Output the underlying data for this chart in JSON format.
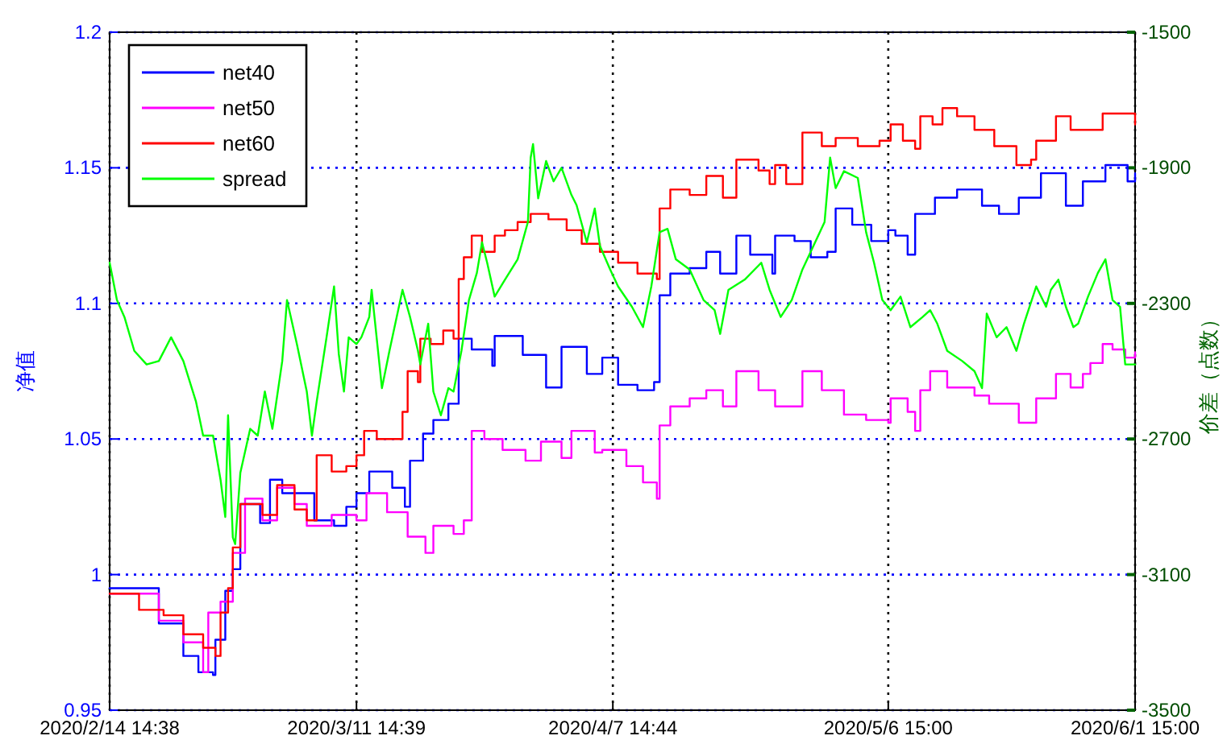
{
  "chart_data": {
    "type": "line",
    "ylabel": "净值",
    "y2label": "价差（点数）",
    "xlim": [
      "2020-02-14T14:38",
      "2020-06-01T15:00"
    ],
    "xticks": [
      {
        "value": "2020-02-14T14:38",
        "label": "2020/2/14 14:38"
      },
      {
        "value": "2020-03-11T14:39",
        "label": "2020/3/11 14:39"
      },
      {
        "value": "2020-04-07T14:44",
        "label": "2020/4/7 14:44"
      },
      {
        "value": "2020-05-06T15:00",
        "label": "2020/5/6 15:00"
      },
      {
        "value": "2020-06-01T15:00",
        "label": "2020/6/1 15:00"
      }
    ],
    "ylim": [
      0.95,
      1.2
    ],
    "yticks": [
      0.95,
      1,
      1.05,
      1.1,
      1.15,
      1.2
    ],
    "y2lim": [
      -3500,
      -1500
    ],
    "y2ticks": [
      -3500,
      -3100,
      -2700,
      -2300,
      -1900,
      -1500
    ],
    "grid": true,
    "legend": "top left",
    "series": [
      {
        "name": "net40",
        "type": "step",
        "color": "#0000ff",
        "x": [
          "2020-02-14T14:38",
          "2020-02-19T19:00",
          "2020-02-22T09:00",
          "2020-02-23T23:00",
          "2020-02-25T12:00",
          "2020-02-25T18:00",
          "2020-02-26T19:00",
          "2020-02-27T14:00",
          "2020-02-28T09:00",
          "2020-03-01T11:00",
          "2020-03-02T12:00",
          "2020-03-03T19:00",
          "2020-03-05T15:00",
          "2020-03-07T04:00",
          "2020-03-09T06:00",
          "2020-03-10T13:00",
          "2020-03-11T14:39",
          "2020-03-12T23:00",
          "2020-03-15T09:00",
          "2020-03-16T17:00",
          "2020-03-17T06:00",
          "2020-03-18T15:00",
          "2020-03-19T17:00",
          "2020-03-21T07:00",
          "2020-03-22T09:00",
          "2020-03-23T18:00",
          "2020-03-25T22:00",
          "2020-03-26T04:00",
          "2020-03-29T03:00",
          "2020-03-31T14:00",
          "2020-04-02T05:00",
          "2020-04-04T21:00",
          "2020-04-06T12:00",
          "2020-04-08T04:00",
          "2020-04-10T05:00",
          "2020-04-11T23:00",
          "2020-04-12T13:00",
          "2020-04-13T16:00",
          "2020-04-15T17:00",
          "2020-04-17T11:00",
          "2020-04-18T22:00",
          "2020-04-20T15:00",
          "2020-04-22T02:00",
          "2020-04-24T10:00",
          "2020-04-24T17:00",
          "2020-04-26T18:00",
          "2020-04-28T11:00",
          "2020-04-30T05:00",
          "2020-05-01T02:00",
          "2020-05-02T20:00",
          "2020-05-04T20:00",
          "2020-05-06T15:00",
          "2020-05-07T09:00",
          "2020-05-08T16:00",
          "2020-05-09T11:00",
          "2020-05-11T13:00",
          "2020-05-13T21:00",
          "2020-05-16T12:00",
          "2020-05-18T07:00",
          "2020-05-20T09:00",
          "2020-05-22T17:00",
          "2020-05-25T08:00",
          "2020-05-27T03:00",
          "2020-05-29T12:00",
          "2020-05-31T20:00",
          "2020-06-01T15:00"
        ],
        "values": [
          0.995,
          0.982,
          0.97,
          0.964,
          0.963,
          0.976,
          0.994,
          1.002,
          1.026,
          1.019,
          1.035,
          1.03,
          1.03,
          1.02,
          1.018,
          1.025,
          1.03,
          1.038,
          1.032,
          1.025,
          1.042,
          1.052,
          1.057,
          1.063,
          1.087,
          1.083,
          1.077,
          1.088,
          1.081,
          1.069,
          1.084,
          1.074,
          1.08,
          1.07,
          1.068,
          1.071,
          1.103,
          1.111,
          1.113,
          1.119,
          1.111,
          1.125,
          1.118,
          1.111,
          1.125,
          1.123,
          1.117,
          1.119,
          1.135,
          1.129,
          1.123,
          1.127,
          1.125,
          1.118,
          1.133,
          1.139,
          1.142,
          1.136,
          1.133,
          1.139,
          1.148,
          1.136,
          1.145,
          1.151,
          1.145,
          1.148
        ]
      },
      {
        "name": "net50",
        "type": "step",
        "color": "#ff00ff",
        "x": [
          "2020-02-14T14:38",
          "2020-02-19T19:00",
          "2020-02-22T09:00",
          "2020-02-24T11:00",
          "2020-02-25T00:00",
          "2020-02-26T07:00",
          "2020-02-27T14:00",
          "2020-02-28T21:00",
          "2020-03-01T17:00",
          "2020-03-03T06:00",
          "2020-03-05T02:00",
          "2020-03-06T09:00",
          "2020-03-09T00:00",
          "2020-03-11T14:39",
          "2020-03-12T16:00",
          "2020-03-14T20:00",
          "2020-03-17T00:00",
          "2020-03-18T21:00",
          "2020-03-19T17:00",
          "2020-03-21T20:00",
          "2020-03-22T22:00",
          "2020-03-23T18:00",
          "2020-03-25T02:00",
          "2020-03-27T00:00",
          "2020-03-29T10:00",
          "2020-03-31T01:00",
          "2020-04-02T05:00",
          "2020-04-03T06:00",
          "2020-04-05T17:00",
          "2020-04-06T12:00",
          "2020-04-09T01:00",
          "2020-04-10T19:00",
          "2020-04-12T06:00",
          "2020-04-12T13:00",
          "2020-04-13T16:00",
          "2020-04-15T17:00",
          "2020-04-17T11:00",
          "2020-04-19T05:00",
          "2020-04-20T15:00",
          "2020-04-22T23:00",
          "2020-04-24T17:00",
          "2020-04-27T14:00",
          "2020-04-29T15:00",
          "2020-05-01T23:00",
          "2020-05-04T07:00",
          "2020-05-06T15:00",
          "2020-05-06T21:00",
          "2020-05-08T16:00",
          "2020-05-09T11:00",
          "2020-05-10T00:00",
          "2020-05-11T01:00",
          "2020-05-12T20:00",
          "2020-05-15T17:00",
          "2020-05-17T06:00",
          "2020-05-20T09:00",
          "2020-05-22T05:00",
          "2020-05-24T07:00",
          "2020-05-25T20:00",
          "2020-05-27T03:00",
          "2020-05-27T22:00",
          "2020-05-29T05:00",
          "2020-05-30T06:00",
          "2020-05-31T14:00",
          "2020-06-01T15:00"
        ],
        "values": [
          0.993,
          0.983,
          0.975,
          0.964,
          0.986,
          0.99,
          1.008,
          1.028,
          1.02,
          1.032,
          1.026,
          1.018,
          1.022,
          1.02,
          1.03,
          1.023,
          1.014,
          1.008,
          1.018,
          1.015,
          1.02,
          1.053,
          1.05,
          1.046,
          1.042,
          1.049,
          1.043,
          1.053,
          1.045,
          1.046,
          1.04,
          1.034,
          1.028,
          1.055,
          1.062,
          1.065,
          1.068,
          1.062,
          1.075,
          1.068,
          1.062,
          1.075,
          1.068,
          1.059,
          1.057,
          1.056,
          1.065,
          1.06,
          1.053,
          1.068,
          1.075,
          1.069,
          1.066,
          1.063,
          1.056,
          1.065,
          1.074,
          1.069,
          1.074,
          1.078,
          1.085,
          1.083,
          1.08,
          1.082
        ]
      },
      {
        "name": "net60",
        "type": "step",
        "color": "#ff0000",
        "x": [
          "2020-02-14T14:38",
          "2020-02-17T17:00",
          "2020-02-20T07:00",
          "2020-02-22T09:00",
          "2020-02-24T11:00",
          "2020-02-25T18:00",
          "2020-02-26T07:00",
          "2020-02-27T02:00",
          "2020-02-27T14:00",
          "2020-02-28T09:00",
          "2020-03-01T17:00",
          "2020-03-03T06:00",
          "2020-03-05T02:00",
          "2020-03-06T09:00",
          "2020-03-07T10:00",
          "2020-03-09T00:00",
          "2020-03-10T13:00",
          "2020-03-11T14:39",
          "2020-03-12T10:00",
          "2020-03-13T18:00",
          "2020-03-15T22:00",
          "2020-03-16T11:00",
          "2020-03-17T00:00",
          "2020-03-18T02:00",
          "2020-03-18T08:00",
          "2020-03-19T10:00",
          "2020-03-20T18:00",
          "2020-03-21T20:00",
          "2020-03-22T09:00",
          "2020-03-22T22:00",
          "2020-03-23T18:00",
          "2020-03-24T20:00",
          "2020-03-26T04:00",
          "2020-03-27T06:00",
          "2020-03-28T14:00",
          "2020-03-29T23:00",
          "2020-03-31T20:00",
          "2020-04-02T18:00",
          "2020-04-04T08:00",
          "2020-04-06T06:00",
          "2020-04-08T04:00",
          "2020-04-10T05:00",
          "2020-04-12T06:00",
          "2020-04-12T13:00",
          "2020-04-13T16:00",
          "2020-04-15T17:00",
          "2020-04-17T11:00",
          "2020-04-19T05:00",
          "2020-04-20T15:00",
          "2020-04-22T23:00",
          "2020-04-24T03:00",
          "2020-04-24T17:00",
          "2020-04-25T21:00",
          "2020-04-27T14:00",
          "2020-04-29T15:00",
          "2020-05-01T02:00",
          "2020-05-03T10:00",
          "2020-05-05T17:00",
          "2020-05-06T21:00",
          "2020-05-08T04:00",
          "2020-05-09T11:00",
          "2020-05-10T00:00",
          "2020-05-11T07:00",
          "2020-05-12T08:00",
          "2020-05-13T21:00",
          "2020-05-15T17:00",
          "2020-05-17T19:00",
          "2020-05-20T03:00",
          "2020-05-21T16:00",
          "2020-05-22T05:00",
          "2020-05-24T07:00",
          "2020-05-25T20:00",
          "2020-05-27T16:00",
          "2020-05-29T05:00",
          "2020-05-30T19:00",
          "2020-06-01T15:00"
        ],
        "values": [
          0.993,
          0.987,
          0.985,
          0.978,
          0.973,
          0.97,
          0.986,
          0.995,
          1.01,
          1.026,
          1.022,
          1.033,
          1.024,
          1.02,
          1.044,
          1.038,
          1.04,
          1.044,
          1.053,
          1.05,
          1.05,
          1.06,
          1.075,
          1.071,
          1.087,
          1.085,
          1.09,
          1.087,
          1.109,
          1.117,
          1.125,
          1.119,
          1.125,
          1.127,
          1.13,
          1.133,
          1.131,
          1.127,
          1.122,
          1.119,
          1.115,
          1.111,
          1.109,
          1.135,
          1.142,
          1.14,
          1.147,
          1.139,
          1.153,
          1.149,
          1.144,
          1.151,
          1.144,
          1.163,
          1.158,
          1.161,
          1.158,
          1.16,
          1.166,
          1.16,
          1.157,
          1.169,
          1.166,
          1.172,
          1.169,
          1.164,
          1.158,
          1.151,
          1.153,
          1.16,
          1.169,
          1.164,
          1.164,
          1.17,
          1.17,
          1.166
        ]
      },
      {
        "name": "spread",
        "axis": "y2",
        "color": "#00ff00",
        "x": [
          "2020-02-14T14:38",
          "2020-02-15T09:00",
          "2020-02-16T04:00",
          "2020-02-17T05:00",
          "2020-02-18T12:00",
          "2020-02-19T19:00",
          "2020-02-21T02:00",
          "2020-02-22T09:00",
          "2020-02-23T17:00",
          "2020-02-24T11:00",
          "2020-02-25T12:00",
          "2020-02-26T07:00",
          "2020-02-26T19:00",
          "2020-02-27T02:00",
          "2020-02-27T14:00",
          "2020-02-27T20:00",
          "2020-02-28T09:00",
          "2020-02-29T10:00",
          "2020-03-01T05:00",
          "2020-03-01T23:00",
          "2020-03-02T18:00",
          "2020-03-03T19:00",
          "2020-03-04T07:00",
          "2020-03-05T08:00",
          "2020-03-06T09:00",
          "2020-03-06T22:00",
          "2020-03-07T10:00",
          "2020-03-08T11:00",
          "2020-03-09T06:00",
          "2020-03-09T18:00",
          "2020-03-10T07:00",
          "2020-03-10T19:00",
          "2020-03-11T14:39",
          "2020-03-12T03:00",
          "2020-03-12T23:00",
          "2020-03-13T05:00",
          "2020-03-14T07:00",
          "2020-03-15T02:00",
          "2020-03-16T11:00",
          "2020-03-17T06:00",
          "2020-03-18T02:00",
          "2020-03-18T08:00",
          "2020-03-19T04:00",
          "2020-03-19T17:00",
          "2020-03-20T12:00",
          "2020-03-21T07:00",
          "2020-03-21T20:00",
          "2020-03-22T16:00",
          "2020-03-23T11:00",
          "2020-03-24T07:00",
          "2020-03-24T20:00",
          "2020-03-25T09:00",
          "2020-03-26T04:00",
          "2020-03-27T06:00",
          "2020-03-28T14:00",
          "2020-03-29T16:00",
          "2020-03-29T23:00",
          "2020-03-30T05:00",
          "2020-03-30T18:00",
          "2020-03-31T14:00",
          "2020-04-01T09:00",
          "2020-04-02T05:00",
          "2020-04-03T06:00",
          "2020-04-03T19:00",
          "2020-04-04T21:00",
          "2020-04-05T17:00",
          "2020-04-06T06:00",
          "2020-04-07T08:00",
          "2020-04-08T04:00",
          "2020-04-09T15:00",
          "2020-04-10T19:00",
          "2020-04-11T16:00",
          "2020-04-12T13:00",
          "2020-04-13T09:00",
          "2020-04-14T06:00",
          "2020-04-15T17:00",
          "2020-04-17T04:00",
          "2020-04-18T08:00",
          "2020-04-18T22:00",
          "2020-04-19T19:00",
          "2020-04-21T12:00",
          "2020-04-23T06:00",
          "2020-04-24T03:00",
          "2020-04-25T07:00",
          "2020-04-26T11:00",
          "2020-04-27T14:00",
          "2020-04-28T18:00",
          "2020-04-29T22:00",
          "2020-04-30T12:00",
          "2020-05-01T02:00",
          "2020-05-01T23:00",
          "2020-05-03T10:00",
          "2020-05-04T07:00",
          "2020-05-05T03:00",
          "2020-05-06T00:00",
          "2020-05-06T21:00",
          "2020-05-07T22:00",
          "2020-05-08T23:00",
          "2020-05-10T06:00",
          "2020-05-11T01:00",
          "2020-05-11T19:00",
          "2020-05-12T20:00",
          "2020-05-14T10:00",
          "2020-05-15T17:00",
          "2020-05-16T12:00",
          "2020-05-17T00:00",
          "2020-05-18T01:00",
          "2020-05-19T02:00",
          "2020-05-20T03:00",
          "2020-05-20T22:00",
          "2020-05-22T05:00",
          "2020-05-23T06:00",
          "2020-05-23T18:00",
          "2020-05-24T13:00",
          "2020-05-25T08:00",
          "2020-05-26T03:00",
          "2020-05-26T15:00",
          "2020-05-27T16:00",
          "2020-05-28T17:00",
          "2020-05-29T12:00",
          "2020-05-30T06:00",
          "2020-05-31T01:00",
          "2020-05-31T14:00",
          "2020-06-01T15:00"
        ],
        "values": [
          -2180,
          -2290,
          -2340,
          -2440,
          -2480,
          -2470,
          -2400,
          -2470,
          -2590,
          -2690,
          -2690,
          -2820,
          -2930,
          -2630,
          -2990,
          -3010,
          -2800,
          -2670,
          -2690,
          -2560,
          -2670,
          -2470,
          -2290,
          -2420,
          -2560,
          -2690,
          -2590,
          -2400,
          -2250,
          -2450,
          -2560,
          -2400,
          -2420,
          -2400,
          -2340,
          -2260,
          -2550,
          -2440,
          -2260,
          -2340,
          -2440,
          -2480,
          -2360,
          -2560,
          -2630,
          -2550,
          -2560,
          -2440,
          -2290,
          -2210,
          -2120,
          -2180,
          -2280,
          -2230,
          -2170,
          -2060,
          -1870,
          -1830,
          -1990,
          -1880,
          -1940,
          -1900,
          -1980,
          -2010,
          -2120,
          -2020,
          -2130,
          -2200,
          -2250,
          -2310,
          -2370,
          -2250,
          -2090,
          -2080,
          -2170,
          -2200,
          -2290,
          -2320,
          -2390,
          -2260,
          -2230,
          -2180,
          -2260,
          -2340,
          -2290,
          -2200,
          -2130,
          -2060,
          -1870,
          -1960,
          -1910,
          -1930,
          -2090,
          -2180,
          -2290,
          -2320,
          -2280,
          -2370,
          -2340,
          -2320,
          -2360,
          -2440,
          -2470,
          -2500,
          -2550,
          -2330,
          -2400,
          -2370,
          -2440,
          -2360,
          -2250,
          -2310,
          -2260,
          -2230,
          -2310,
          -2370,
          -2360,
          -2280,
          -2210,
          -2170,
          -2290,
          -2310,
          -2480,
          -2480
        ]
      }
    ]
  }
}
